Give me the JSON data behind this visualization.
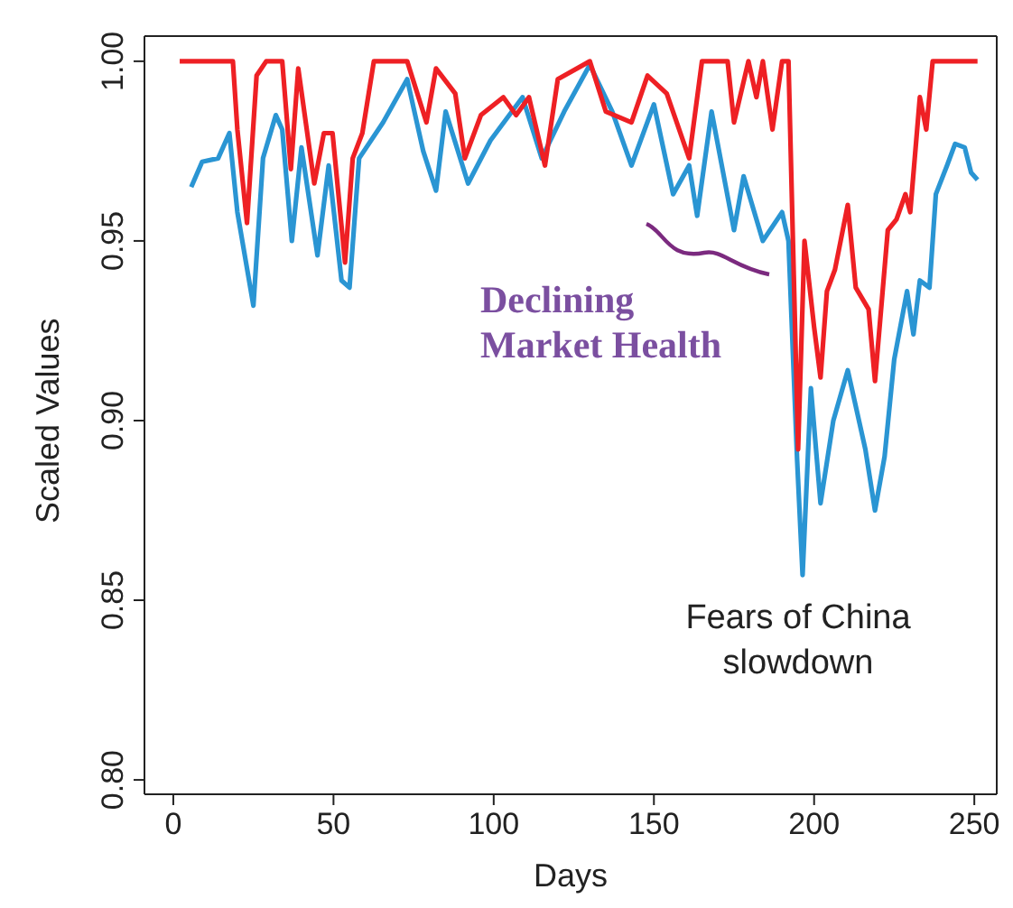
{
  "chart_data": {
    "type": "line",
    "xlabel": "Days",
    "ylabel": "Scaled Values",
    "xlim": [
      -9,
      257
    ],
    "ylim": [
      0.796,
      1.007
    ],
    "xticks": [
      0,
      50,
      100,
      150,
      200,
      250
    ],
    "yticks": [
      {
        "value": 0.8,
        "label": "0.80"
      },
      {
        "value": 0.85,
        "label": "0.85"
      },
      {
        "value": 0.9,
        "label": "0.90"
      },
      {
        "value": 0.95,
        "label": "0.95"
      },
      {
        "value": 1.0,
        "label": "1.00"
      }
    ],
    "grid": false,
    "legend": false,
    "marker": "none",
    "line_style": "solid",
    "annotations": [
      "Declining Market Health",
      "Fears of China slowdown"
    ],
    "series": [
      {
        "color": "#2a95d3",
        "x": [
          5.6,
          9,
          14,
          17.5,
          20,
          25,
          28,
          32,
          34,
          37,
          40,
          45,
          48.5,
          52.5,
          55,
          58,
          65.5,
          73,
          78,
          82,
          85,
          92,
          99,
          109,
          115,
          122,
          130,
          137,
          143,
          150,
          156,
          161,
          163.5,
          168,
          175,
          178,
          184,
          190,
          192,
          194.7,
          196.4,
          199,
          202,
          206,
          210.5,
          216,
          219,
          222,
          225,
          229,
          231,
          233,
          236,
          238,
          241.5,
          244,
          247,
          249,
          251
        ],
        "values": [
          0.965,
          0.972,
          0.973,
          0.98,
          0.958,
          0.932,
          0.973,
          0.985,
          0.981,
          0.95,
          0.976,
          0.946,
          0.971,
          0.939,
          0.937,
          0.973,
          0.983,
          0.995,
          0.975,
          0.964,
          0.986,
          0.966,
          0.978,
          0.99,
          0.973,
          0.986,
          0.999,
          0.986,
          0.971,
          0.988,
          0.963,
          0.971,
          0.957,
          0.986,
          0.953,
          0.968,
          0.95,
          0.958,
          0.95,
          0.889,
          0.857,
          0.909,
          0.877,
          0.9,
          0.914,
          0.892,
          0.875,
          0.89,
          0.917,
          0.936,
          0.924,
          0.939,
          0.937,
          0.963,
          0.971,
          0.977,
          0.976,
          0.969,
          0.967
        ]
      },
      {
        "color": "#ee2024",
        "x": [
          2,
          18.6,
          20,
          23,
          26,
          29,
          34,
          36.7,
          39,
          44,
          47,
          49.7,
          53.6,
          56,
          59,
          62.6,
          73,
          79,
          82,
          88,
          91,
          96,
          103,
          107,
          111,
          116,
          120,
          130,
          135,
          143,
          148,
          154,
          161,
          165,
          173,
          175,
          179.5,
          182,
          184,
          187,
          190,
          192,
          195,
          197,
          200,
          202,
          204,
          206.5,
          210.5,
          213,
          217,
          219,
          223,
          225.7,
          228.5,
          230,
          233,
          235,
          237,
          251
        ],
        "values": [
          1.0,
          1.0,
          0.981,
          0.955,
          0.996,
          1.0,
          1.0,
          0.97,
          0.998,
          0.966,
          0.98,
          0.98,
          0.944,
          0.973,
          0.98,
          1.0,
          1.0,
          0.983,
          0.998,
          0.991,
          0.973,
          0.985,
          0.99,
          0.985,
          0.99,
          0.971,
          0.995,
          1.0,
          0.986,
          0.983,
          0.996,
          0.991,
          0.973,
          1.0,
          1.0,
          0.983,
          1.0,
          0.99,
          1.0,
          0.981,
          1.0,
          1.0,
          0.892,
          0.95,
          0.926,
          0.912,
          0.936,
          0.942,
          0.96,
          0.937,
          0.931,
          0.911,
          0.953,
          0.956,
          0.963,
          0.958,
          0.99,
          0.981,
          1.0,
          1.0
        ]
      }
    ]
  }
}
